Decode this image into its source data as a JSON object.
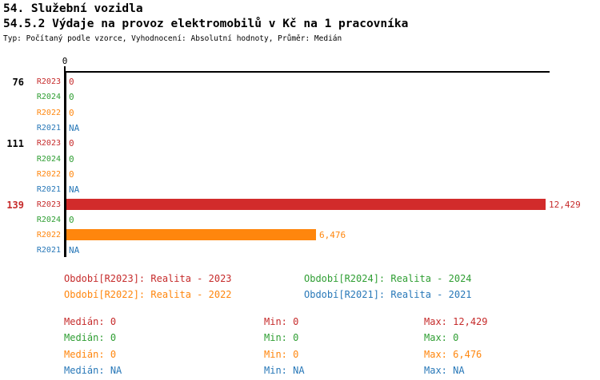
{
  "page": {
    "title_line1": "54. Služební vozidla",
    "title_line2": "54.5.2 Výdaje na provoz elektromobilů v Kč na 1 pracovníka",
    "subtitle": "Typ: Počítaný podle vzorce, Vyhodnocení: Absolutní hodnoty, Průměr: Medián"
  },
  "colors": {
    "r2023_text": "#c62b2b",
    "r2024_text": "#2f9e33",
    "r2022_text": "#ff860d",
    "r2021_text": "#2878b8",
    "bar_r2023": "#d22b2b",
    "bar_r2022": "#ff860d",
    "axis": "#000000"
  },
  "chart_data": {
    "type": "bar",
    "orientation": "horizontal",
    "title": "54.5.2 Výdaje na provoz elektromobilů v Kč na 1 pracovníka",
    "xlabel": "",
    "ylabel": "",
    "axis": {
      "tick_label": "0",
      "tick_value": 0,
      "max_value": 12580
    },
    "series_order": [
      "R2023",
      "R2024",
      "R2022",
      "R2021"
    ],
    "groups": [
      {
        "label": "76",
        "label_color": "#000000",
        "rows": [
          {
            "series": "R2023",
            "value_text": "0",
            "value": 0
          },
          {
            "series": "R2024",
            "value_text": "0",
            "value": 0
          },
          {
            "series": "R2022",
            "value_text": "0",
            "value": 0
          },
          {
            "series": "R2021",
            "value_text": "NA",
            "value": null
          }
        ]
      },
      {
        "label": "111",
        "label_color": "#000000",
        "rows": [
          {
            "series": "R2023",
            "value_text": "0",
            "value": 0
          },
          {
            "series": "R2024",
            "value_text": "0",
            "value": 0
          },
          {
            "series": "R2022",
            "value_text": "0",
            "value": 0
          },
          {
            "series": "R2021",
            "value_text": "NA",
            "value": null
          }
        ]
      },
      {
        "label": "139",
        "label_color": "#c62b2b",
        "rows": [
          {
            "series": "R2023",
            "value_text": "12,429",
            "value": 12429
          },
          {
            "series": "R2024",
            "value_text": "0",
            "value": 0
          },
          {
            "series": "R2022",
            "value_text": "6,476",
            "value": 6476
          },
          {
            "series": "R2021",
            "value_text": "NA",
            "value": null
          }
        ]
      }
    ]
  },
  "legend": {
    "items": [
      {
        "series": "R2023",
        "label": "Období[R2023]: Realita - 2023"
      },
      {
        "series": "R2024",
        "label": "Období[R2024]: Realita - 2024"
      },
      {
        "series": "R2022",
        "label": "Období[R2022]: Realita - 2022"
      },
      {
        "series": "R2021",
        "label": "Období[R2021]: Realita - 2021"
      }
    ]
  },
  "stats": {
    "rows": [
      {
        "series": "R2023",
        "median_label": "Medián:",
        "median": "0",
        "min_label": "Min:",
        "min": "0",
        "max_label": "Max:",
        "max": "12,429"
      },
      {
        "series": "R2024",
        "median_label": "Medián:",
        "median": "0",
        "min_label": "Min:",
        "min": "0",
        "max_label": "Max:",
        "max": "0"
      },
      {
        "series": "R2022",
        "median_label": "Medián:",
        "median": "0",
        "min_label": "Min:",
        "min": "0",
        "max_label": "Max:",
        "max": "6,476"
      },
      {
        "series": "R2021",
        "median_label": "Medián:",
        "median": "NA",
        "min_label": "Min:",
        "min": "NA",
        "max_label": "Max:",
        "max": "NA"
      }
    ]
  }
}
